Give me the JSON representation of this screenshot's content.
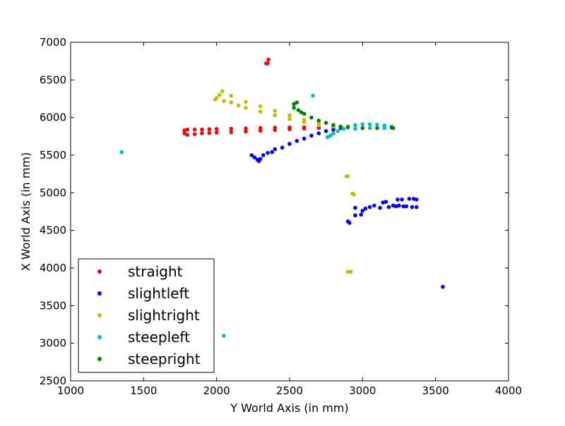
{
  "chart_data": {
    "type": "scatter",
    "title": "",
    "xlabel": "Y World Axis (in mm)",
    "ylabel": "X World Axis (in mm)",
    "xlim": [
      1000,
      4000
    ],
    "ylim": [
      2500,
      7000
    ],
    "xticks": [
      1000,
      1500,
      2000,
      2500,
      3000,
      3500,
      4000
    ],
    "yticks": [
      2500,
      3000,
      3500,
      4000,
      4500,
      5000,
      5500,
      6000,
      6500,
      7000
    ],
    "grid": false,
    "legend_position": "lower-left",
    "series": [
      {
        "name": "straight",
        "color": "#ff0000",
        "points": [
          [
            1780,
            5790
          ],
          [
            1780,
            5830
          ],
          [
            1800,
            5770
          ],
          [
            1800,
            5840
          ],
          [
            1850,
            5780
          ],
          [
            1850,
            5840
          ],
          [
            1900,
            5790
          ],
          [
            1900,
            5840
          ],
          [
            1950,
            5795
          ],
          [
            1950,
            5845
          ],
          [
            2000,
            5800
          ],
          [
            2000,
            5848
          ],
          [
            2100,
            5805
          ],
          [
            2100,
            5850
          ],
          [
            2200,
            5815
          ],
          [
            2200,
            5855
          ],
          [
            2300,
            5825
          ],
          [
            2300,
            5860
          ],
          [
            2400,
            5835
          ],
          [
            2400,
            5865
          ],
          [
            2500,
            5845
          ],
          [
            2500,
            5868
          ],
          [
            2600,
            5855
          ],
          [
            2600,
            5870
          ],
          [
            2700,
            5862
          ],
          [
            2700,
            5872
          ],
          [
            2800,
            5866
          ],
          [
            2850,
            5868
          ],
          [
            2340,
            6720
          ],
          [
            2350,
            6720
          ],
          [
            2355,
            6770
          ]
        ]
      },
      {
        "name": "slightleft",
        "color": "#0000ff",
        "points": [
          [
            2240,
            5500
          ],
          [
            2260,
            5470
          ],
          [
            2280,
            5440
          ],
          [
            2290,
            5420
          ],
          [
            2300,
            5450
          ],
          [
            2320,
            5500
          ],
          [
            2350,
            5530
          ],
          [
            2380,
            5540
          ],
          [
            2400,
            5580
          ],
          [
            2450,
            5600
          ],
          [
            2500,
            5650
          ],
          [
            2550,
            5690
          ],
          [
            2600,
            5720
          ],
          [
            2650,
            5760
          ],
          [
            2700,
            5790
          ],
          [
            2750,
            5820
          ],
          [
            2800,
            5840
          ],
          [
            2850,
            5860
          ],
          [
            2900,
            4620
          ],
          [
            2910,
            4600
          ],
          [
            2950,
            4700
          ],
          [
            2950,
            4800
          ],
          [
            2990,
            4710
          ],
          [
            3000,
            4760
          ],
          [
            3020,
            4790
          ],
          [
            3050,
            4810
          ],
          [
            3080,
            4830
          ],
          [
            3120,
            4800
          ],
          [
            3140,
            4870
          ],
          [
            3160,
            4880
          ],
          [
            3180,
            4810
          ],
          [
            3210,
            4830
          ],
          [
            3230,
            4820
          ],
          [
            3240,
            4910
          ],
          [
            3250,
            4830
          ],
          [
            3270,
            4910
          ],
          [
            3280,
            4820
          ],
          [
            3300,
            4820
          ],
          [
            3320,
            4920
          ],
          [
            3340,
            4810
          ],
          [
            3350,
            4920
          ],
          [
            3370,
            4810
          ],
          [
            3370,
            4910
          ],
          [
            3550,
            3750
          ]
        ]
      },
      {
        "name": "slightright",
        "color": "#bfbf00",
        "points": [
          [
            1990,
            6240
          ],
          [
            2000,
            6260
          ],
          [
            2020,
            6300
          ],
          [
            2040,
            6350
          ],
          [
            2050,
            6220
          ],
          [
            2100,
            6200
          ],
          [
            2100,
            6290
          ],
          [
            2150,
            6160
          ],
          [
            2200,
            6130
          ],
          [
            2200,
            6210
          ],
          [
            2300,
            6080
          ],
          [
            2300,
            6150
          ],
          [
            2400,
            6030
          ],
          [
            2400,
            6090
          ],
          [
            2500,
            5980
          ],
          [
            2500,
            6030
          ],
          [
            2600,
            5940
          ],
          [
            2600,
            5970
          ],
          [
            2700,
            5900
          ],
          [
            2700,
            5920
          ],
          [
            2800,
            5880
          ],
          [
            2890,
            5220
          ],
          [
            2900,
            5220
          ],
          [
            2930,
            4990
          ],
          [
            2940,
            4980
          ],
          [
            2900,
            3950
          ],
          [
            2920,
            3950
          ]
        ]
      },
      {
        "name": "steepleft",
        "color": "#00bfbf",
        "points": [
          [
            2760,
            5740
          ],
          [
            2780,
            5760
          ],
          [
            2800,
            5790
          ],
          [
            2830,
            5820
          ],
          [
            2870,
            5850
          ],
          [
            2900,
            5880
          ],
          [
            2950,
            5900
          ],
          [
            3000,
            5910
          ],
          [
            3050,
            5910
          ],
          [
            3100,
            5905
          ],
          [
            3150,
            5895
          ],
          [
            3200,
            5880
          ],
          [
            2950,
            5850
          ],
          [
            3050,
            5860
          ],
          [
            3150,
            5860
          ],
          [
            1350,
            5540
          ],
          [
            2660,
            6290
          ],
          [
            2050,
            3100
          ]
        ]
      },
      {
        "name": "steepright",
        "color": "#008000",
        "points": [
          [
            2530,
            6180
          ],
          [
            2530,
            6130
          ],
          [
            2550,
            6200
          ],
          [
            2560,
            6100
          ],
          [
            2580,
            6070
          ],
          [
            2600,
            6050
          ],
          [
            2650,
            6000
          ],
          [
            2700,
            5960
          ],
          [
            2750,
            5930
          ],
          [
            2800,
            5900
          ],
          [
            2850,
            5880
          ],
          [
            2900,
            5870
          ],
          [
            3000,
            5860
          ],
          [
            3100,
            5860
          ],
          [
            3200,
            5865
          ],
          [
            3210,
            5860
          ]
        ]
      }
    ]
  }
}
